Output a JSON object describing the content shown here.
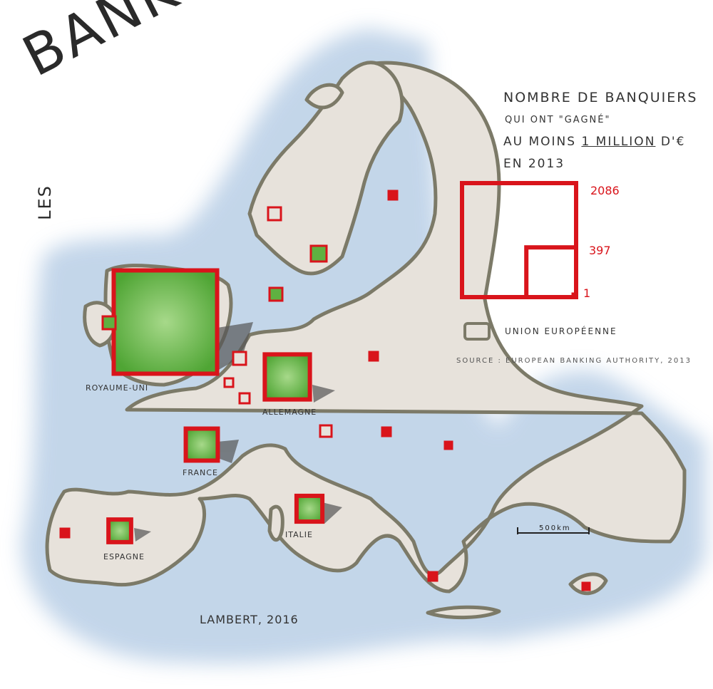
{
  "title": {
    "les": "LES",
    "word": "BANKSTERS"
  },
  "heading": {
    "line1": "NOMBRE DE BANQUIERS",
    "line2": "QUI ONT \"GAGNÉ\"",
    "line3_prefix": "AU MOINS",
    "line3_emph": "1 MILLION",
    "line3_suffix": "D'€",
    "line4": "EN 2013"
  },
  "size_legend": {
    "values": [
      2086,
      397,
      1
    ],
    "labels": [
      "2086",
      "397",
      "1"
    ],
    "color": "#d9141b"
  },
  "eu_legend_label": "UNION EUROPÉENNE",
  "source": "SOURCE : EUROPEAN BANKING AUTHORITY, 2013",
  "scale_label": "500km",
  "signature": "LAMBERT, 2016",
  "countries": [
    {
      "name": "ROYAUME-UNI",
      "value": 2086
    },
    {
      "name": "ALLEMAGNE",
      "value": 397
    },
    {
      "name": "FRANCE",
      "value": 200
    },
    {
      "name": "ITALIE",
      "value": 130
    },
    {
      "name": "ESPAGNE",
      "value": 100
    }
  ],
  "colors": {
    "land": "#e7e2db",
    "sea": "#b9cfe6",
    "coast": "#7c7a68",
    "square_fill": "#5fb141",
    "square_edge": "#d9141b",
    "shadow": "#555555"
  }
}
